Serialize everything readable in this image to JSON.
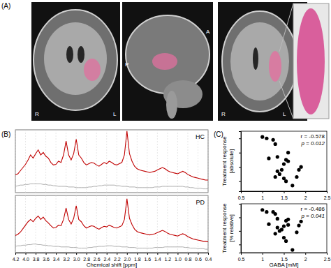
{
  "chart_data": [
    {
      "type": "image",
      "panel": "(A)",
      "annotations": [
        "R",
        "L",
        "P",
        "A",
        "R",
        "L"
      ]
    },
    {
      "type": "line",
      "panel": "(B)",
      "annotations": [
        "HC"
      ],
      "x": [
        4.2,
        4.15,
        4.1,
        4.05,
        4,
        3.95,
        3.9,
        3.85,
        3.8,
        3.75,
        3.7,
        3.65,
        3.6,
        3.55,
        3.5,
        3.45,
        3.4,
        3.35,
        3.3,
        3.25,
        3.2,
        3.15,
        3.1,
        3.05,
        3,
        2.95,
        2.9,
        2.85,
        2.8,
        2.75,
        2.7,
        2.65,
        2.6,
        2.55,
        2.5,
        2.45,
        2.4,
        2.35,
        2.3,
        2.25,
        2.2,
        2.15,
        2.1,
        2.05,
        2,
        1.95,
        1.9,
        1.85,
        1.8,
        1.75,
        1.7,
        1.65,
        1.6,
        1.55,
        1.5,
        1.45,
        1.4,
        1.35,
        1.3,
        1.25,
        1.2,
        1.15,
        1.1,
        1.05,
        1,
        0.95,
        0.9,
        0.85,
        0.8,
        0.75,
        0.7,
        0.65,
        0.6,
        0.55,
        0.5,
        0.45,
        0.4
      ],
      "series": [
        {
          "color": "#c00000",
          "values": [
            28,
            30,
            35,
            40,
            45,
            52,
            60,
            55,
            62,
            68,
            60,
            64,
            58,
            55,
            48,
            44,
            45,
            50,
            48,
            60,
            82,
            60,
            52,
            62,
            85,
            60,
            55,
            48,
            44,
            46,
            48,
            47,
            44,
            42,
            45,
            48,
            46,
            50,
            48,
            45,
            44,
            46,
            48,
            60,
            98,
            62,
            50,
            42,
            38,
            36,
            35,
            34,
            33,
            32,
            33,
            34,
            36,
            38,
            40,
            38,
            35,
            33,
            32,
            31,
            30,
            32,
            34,
            32,
            29,
            27,
            25,
            24,
            23,
            22,
            21,
            20,
            20
          ]
        },
        {
          "color": "#999999",
          "values": [
            10,
            11,
            12,
            12,
            13,
            13,
            14,
            14,
            14,
            14,
            14,
            13,
            13,
            12,
            12,
            11,
            11,
            10,
            10,
            10,
            10,
            9,
            9,
            9,
            8,
            8,
            8,
            8,
            8,
            9,
            9,
            10,
            10,
            11,
            11,
            12,
            12,
            12,
            12,
            12,
            11,
            11,
            10,
            10,
            10,
            9,
            9,
            9,
            8,
            8,
            8,
            8,
            8,
            8,
            8,
            9,
            9,
            9,
            10,
            10,
            10,
            10,
            10,
            10,
            10,
            10,
            10,
            9,
            9,
            8,
            8,
            7,
            7,
            7,
            6,
            6,
            6
          ]
        }
      ],
      "xlim": [
        4.2,
        0.4
      ],
      "ylim": [
        0,
        100
      ],
      "xticks": [
        4.2,
        4,
        3.8,
        3.6,
        3.4,
        3.2,
        3,
        2.8,
        2.6,
        2.4,
        2.2,
        2,
        1.8,
        1.6,
        1.4,
        1.2,
        1,
        0.8,
        0.6,
        0.4
      ],
      "grid": true,
      "tick_labels": false
    },
    {
      "type": "line",
      "annotations": [
        "PD"
      ],
      "x_label": "Chemical shift [ppm]",
      "x": [
        4.2,
        4.15,
        4.1,
        4.05,
        4,
        3.95,
        3.9,
        3.85,
        3.8,
        3.75,
        3.7,
        3.65,
        3.6,
        3.55,
        3.5,
        3.45,
        3.4,
        3.35,
        3.3,
        3.25,
        3.2,
        3.15,
        3.1,
        3.05,
        3,
        2.95,
        2.9,
        2.85,
        2.8,
        2.75,
        2.7,
        2.65,
        2.6,
        2.55,
        2.5,
        2.45,
        2.4,
        2.35,
        2.3,
        2.25,
        2.2,
        2.15,
        2.1,
        2.05,
        2,
        1.95,
        1.9,
        1.85,
        1.8,
        1.75,
        1.7,
        1.65,
        1.6,
        1.55,
        1.5,
        1.45,
        1.4,
        1.35,
        1.3,
        1.25,
        1.2,
        1.15,
        1.1,
        1.05,
        1,
        0.95,
        0.9,
        0.85,
        0.8,
        0.75,
        0.7,
        0.65,
        0.6,
        0.55,
        0.5,
        0.45,
        0.4
      ],
      "series": [
        {
          "color": "#c00000",
          "values": [
            30,
            32,
            36,
            42,
            48,
            54,
            58,
            54,
            60,
            64,
            58,
            62,
            56,
            52,
            47,
            43,
            44,
            48,
            47,
            58,
            78,
            58,
            50,
            60,
            82,
            58,
            54,
            47,
            43,
            45,
            47,
            46,
            43,
            41,
            44,
            46,
            45,
            48,
            46,
            44,
            43,
            45,
            47,
            58,
            94,
            60,
            49,
            41,
            37,
            35,
            34,
            33,
            32,
            31,
            32,
            33,
            35,
            37,
            39,
            37,
            34,
            32,
            31,
            30,
            29,
            31,
            33,
            31,
            28,
            26,
            24,
            23,
            22,
            21,
            20,
            20,
            19
          ]
        },
        {
          "color": "#999999",
          "values": [
            11,
            12,
            12,
            13,
            13,
            14,
            14,
            15,
            15,
            14,
            14,
            13,
            13,
            12,
            12,
            11,
            11,
            11,
            10,
            10,
            10,
            10,
            9,
            9,
            9,
            8,
            8,
            8,
            8,
            9,
            9,
            10,
            10,
            11,
            11,
            11,
            12,
            12,
            12,
            11,
            11,
            11,
            10,
            10,
            10,
            9,
            9,
            9,
            8,
            8,
            8,
            8,
            8,
            8,
            8,
            9,
            9,
            9,
            9,
            10,
            10,
            10,
            10,
            10,
            10,
            10,
            10,
            9,
            9,
            8,
            8,
            8,
            7,
            7,
            7,
            6,
            6
          ]
        }
      ],
      "xlim": [
        4.2,
        0.4
      ],
      "ylim": [
        0,
        100
      ],
      "xticks": [
        4.2,
        {
          "value": 4,
          "label": "4.0"
        },
        3.8,
        3.6,
        3.4,
        3.2,
        {
          "value": 3,
          "label": "3.0"
        },
        2.8,
        2.6,
        2.4,
        2.2,
        {
          "value": 2,
          "label": "2.0"
        },
        1.8,
        1.6,
        1.4,
        1.2,
        {
          "value": 1,
          "label": "1.0"
        },
        0.8,
        0.6,
        0.4
      ],
      "grid": true,
      "tick_labels": "x"
    },
    {
      "type": "scatter",
      "panel": "(C)",
      "y_label": [
        "Treatment response",
        "[absolute]"
      ],
      "annotations": [
        "r = -0.578",
        "p = 0.012"
      ],
      "color": "#000000",
      "marker": "circle",
      "x": [
        1.0,
        1.1,
        1.25,
        1.3,
        1.15,
        1.35,
        1.35,
        1.3,
        1.4,
        1.45,
        1.5,
        1.55,
        1.6,
        1.6,
        1.5,
        1.55,
        1.7,
        1.85,
        1.9,
        1.8
      ],
      "values": [
        31,
        30,
        29,
        26,
        16,
        17,
        7,
        3,
        5,
        8,
        12,
        15,
        20,
        14,
        2,
        0,
        -3,
        8,
        10,
        3
      ],
      "xlim": [
        0.5,
        2.5
      ],
      "ylim": [
        -7,
        35
      ],
      "xticks": [
        0.5,
        1,
        1.5,
        2,
        2.5
      ],
      "yticks": [
        0,
        10,
        20,
        30
      ],
      "tick_labels": "x"
    },
    {
      "type": "scatter",
      "y_label": [
        "Treatment response",
        "[% relative]"
      ],
      "x_label": "GABA [mM]",
      "annotations": [
        "r = -0.486",
        "p = 0.041"
      ],
      "color": "#000000",
      "marker": "circle",
      "x": [
        1.0,
        1.1,
        1.25,
        1.3,
        1.15,
        1.35,
        1.35,
        1.3,
        1.4,
        1.45,
        1.5,
        1.55,
        1.6,
        1.6,
        1.5,
        1.55,
        1.7,
        1.85,
        1.9,
        1.8
      ],
      "values": [
        51,
        48,
        48,
        45,
        30,
        38,
        25,
        16,
        20,
        22,
        27,
        35,
        37,
        29,
        10,
        5,
        -8,
        28,
        34,
        18
      ],
      "xlim": [
        0.5,
        2.5
      ],
      "ylim": [
        -12,
        60
      ],
      "xticks": [
        0.5,
        1,
        1.5,
        2,
        2.5
      ],
      "yticks": [
        0,
        20,
        40,
        60
      ],
      "tick_labels": "x"
    }
  ]
}
